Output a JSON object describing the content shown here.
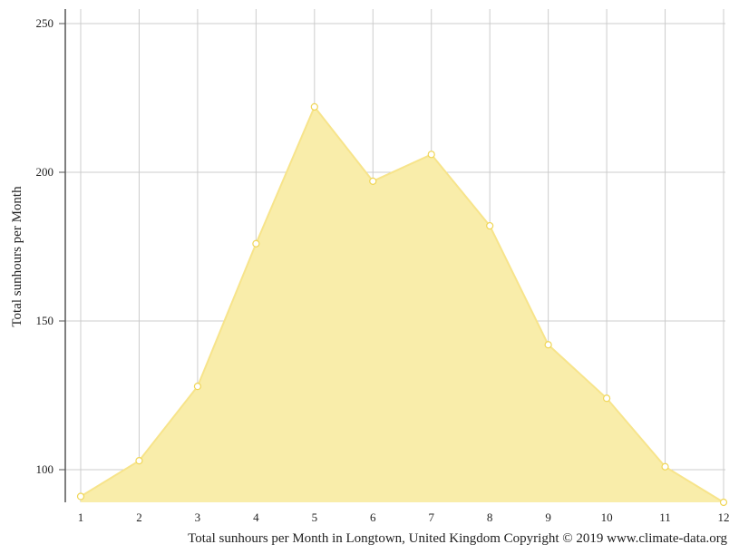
{
  "chart_data": {
    "type": "area",
    "x": [
      1,
      2,
      3,
      4,
      5,
      6,
      7,
      8,
      9,
      10,
      11,
      12
    ],
    "categories": [
      "1",
      "2",
      "3",
      "4",
      "5",
      "6",
      "7",
      "8",
      "9",
      "10",
      "11",
      "12"
    ],
    "values": [
      91,
      103,
      128,
      176,
      222,
      197,
      206,
      182,
      142,
      124,
      101,
      89
    ],
    "ylabel": "Total sunhours per Month",
    "xlabel": "",
    "yticks": [
      "100",
      "150",
      "200",
      "250"
    ],
    "ylim": [
      89,
      255
    ],
    "grid": true,
    "caption": "Total sunhours per Month in Longtown, United Kingdom Copyright © 2019 www.climate-data.org",
    "colors": {
      "fill": "#f9edaa",
      "line": "#f7e48b",
      "marker_stroke": "#f0d657",
      "grid": "#cccccc",
      "axis": "#555555"
    }
  }
}
